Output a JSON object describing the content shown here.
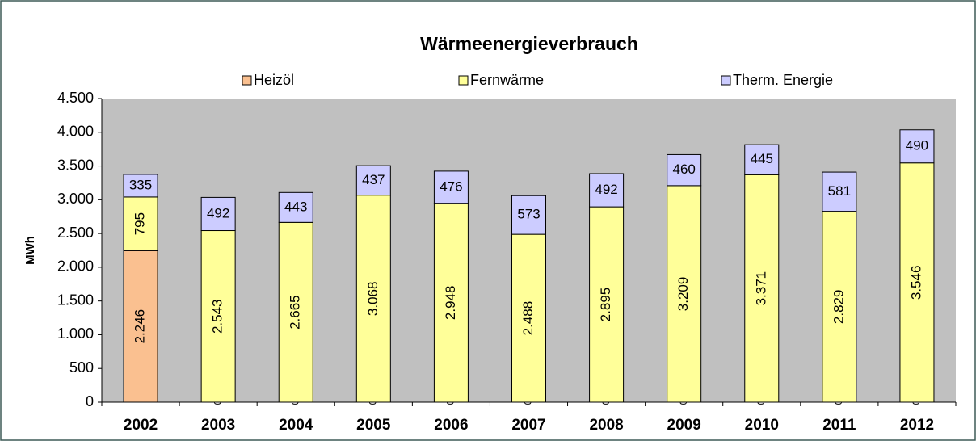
{
  "chart_data": {
    "type": "stacked_bar",
    "title": "Wärmeenergieverbrauch",
    "y_label": "MWh",
    "categories": [
      "2002",
      "2003",
      "2004",
      "2005",
      "2006",
      "2007",
      "2008",
      "2009",
      "2010",
      "2011",
      "2012"
    ],
    "series": [
      {
        "name": "Heizöl",
        "color": "#fac090",
        "values": [
          2246,
          0,
          0,
          0,
          0,
          0,
          0,
          0,
          0,
          0,
          0
        ],
        "value_labels": [
          "2.246",
          "0",
          "0",
          "0",
          "0",
          "0",
          "0",
          "0",
          "0",
          "0",
          "0"
        ]
      },
      {
        "name": "Fernwärme",
        "color": "#ffff99",
        "values": [
          795,
          2543,
          2665,
          3068,
          2948,
          2488,
          2895,
          3209,
          3371,
          2829,
          3546
        ],
        "value_labels": [
          "795",
          "2.543",
          "2.665",
          "3.068",
          "2.948",
          "2.488",
          "2.895",
          "3.209",
          "3.371",
          "2.829",
          "3.546"
        ]
      },
      {
        "name": "Therm. Energie",
        "color": "#ccccff",
        "values": [
          335,
          492,
          443,
          437,
          476,
          573,
          492,
          460,
          445,
          581,
          490
        ],
        "value_labels": [
          "335",
          "492",
          "443",
          "437",
          "476",
          "573",
          "492",
          "460",
          "445",
          "581",
          "490"
        ]
      }
    ],
    "ylim": [
      0,
      4500
    ],
    "yticks": [
      0,
      500,
      {
        "value": 1000,
        "label": "1.000"
      },
      {
        "value": 1500,
        "label": "1.500"
      },
      {
        "value": 2000,
        "label": "2.000"
      },
      {
        "value": 2500,
        "label": "2.500"
      },
      {
        "value": 3000,
        "label": "3.000"
      },
      {
        "value": 3500,
        "label": "3.500"
      },
      {
        "value": 4000,
        "label": "4.000"
      },
      {
        "value": 4500,
        "label": "4.500"
      }
    ],
    "grid": false
  }
}
